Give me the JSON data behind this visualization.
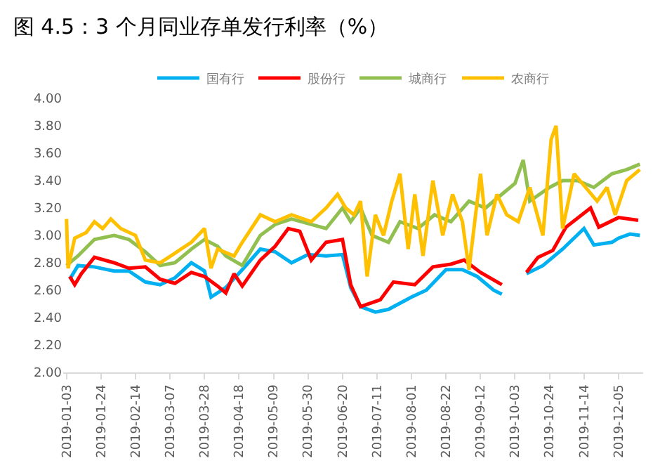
{
  "chart_data": {
    "type": "line",
    "title": "图 4.5：3 个月同业存单发行利率（%）",
    "xlim": [
      "2019-01-01",
      "2019-12-20"
    ],
    "xticks": [
      {
        "value": "2019-01-03",
        "label": "2019-01-03"
      },
      {
        "value": "2019-01-24",
        "label": "2019-01-24"
      },
      {
        "value": "2019-02-14",
        "label": "2019-02-14"
      },
      {
        "value": "2019-03-07",
        "label": "2019-03-07"
      },
      {
        "value": "2019-03-28",
        "label": "2019-03-28"
      },
      {
        "value": "2019-04-18",
        "label": "2019-04-18"
      },
      {
        "value": "2019-05-09",
        "label": "2019-05-09"
      },
      {
        "value": "2019-05-30",
        "label": "2019-05-30"
      },
      {
        "value": "2019-06-20",
        "label": "2019-06-20"
      },
      {
        "value": "2019-07-11",
        "label": "2019-07-11"
      },
      {
        "value": "2019-08-01",
        "label": "2019-08-01"
      },
      {
        "value": "2019-08-22",
        "label": "2019-08-22"
      },
      {
        "value": "2019-09-12",
        "label": "2019-09-12"
      },
      {
        "value": "2019-10-03",
        "label": "2019-10-03"
      },
      {
        "value": "2019-10-24",
        "label": "2019-10-24"
      },
      {
        "value": "2019-11-14",
        "label": "2019-11-14"
      },
      {
        "value": "2019-12-05",
        "label": "2019-12-05"
      }
    ],
    "ylim": [
      2.0,
      4.0
    ],
    "yticks": [
      {
        "value": 2.0,
        "label": "2.00"
      },
      {
        "value": 2.2,
        "label": "2.20"
      },
      {
        "value": 2.4,
        "label": "2.40"
      },
      {
        "value": 2.6,
        "label": "2.60"
      },
      {
        "value": 2.8,
        "label": "2.80"
      },
      {
        "value": 3.0,
        "label": "3.00"
      },
      {
        "value": 3.2,
        "label": "3.20"
      },
      {
        "value": 3.4,
        "label": "3.40"
      },
      {
        "value": 3.6,
        "label": "3.60"
      },
      {
        "value": 3.8,
        "label": "3.80"
      },
      {
        "value": 4.0,
        "label": "4.00"
      }
    ],
    "grid": false,
    "legend": "top",
    "marker": "none",
    "line_style": "solid",
    "series": [
      {
        "name": "国有行",
        "color": "#00b0f0",
        "x": [
          "2019-01-05",
          "2019-01-10",
          "2019-01-20",
          "2019-02-01",
          "2019-02-10",
          "2019-02-20",
          "2019-03-01",
          "2019-03-10",
          "2019-03-20",
          "2019-03-28",
          "2019-04-01",
          "2019-04-10",
          "2019-04-20",
          "2019-05-01",
          "2019-05-10",
          "2019-05-20",
          "2019-05-30",
          "2019-06-10",
          "2019-06-20",
          "2019-06-25",
          "2019-07-01",
          "2019-07-10",
          "2019-07-18",
          "2019-08-01",
          "2019-08-10",
          "2019-08-22",
          "2019-09-01",
          "2019-09-10",
          "2019-09-20",
          "2019-09-25",
          "2019-10-01",
          "2019-10-10",
          "2019-10-20",
          "2019-11-01",
          "2019-11-14",
          "2019-11-20",
          "2019-12-01",
          "2019-12-05",
          "2019-12-12",
          "2019-12-18"
        ],
        "values": [
          2.68,
          2.78,
          2.77,
          2.74,
          2.74,
          2.66,
          2.64,
          2.69,
          2.8,
          2.74,
          2.55,
          2.62,
          2.75,
          2.9,
          2.88,
          2.8,
          2.86,
          2.85,
          2.86,
          2.62,
          2.48,
          2.44,
          2.46,
          2.55,
          2.6,
          2.75,
          2.75,
          2.7,
          2.6,
          2.57,
          null,
          2.72,
          2.78,
          2.9,
          3.05,
          2.93,
          2.95,
          2.98,
          3.01,
          3.0
        ]
      },
      {
        "name": "股份行",
        "color": "#ff0000",
        "x": [
          "2019-01-05",
          "2019-01-08",
          "2019-01-12",
          "2019-01-20",
          "2019-02-01",
          "2019-02-10",
          "2019-02-20",
          "2019-03-01",
          "2019-03-10",
          "2019-03-20",
          "2019-03-28",
          "2019-04-05",
          "2019-04-10",
          "2019-04-15",
          "2019-04-20",
          "2019-05-01",
          "2019-05-10",
          "2019-05-18",
          "2019-05-25",
          "2019-06-01",
          "2019-06-10",
          "2019-06-20",
          "2019-06-25",
          "2019-07-01",
          "2019-07-13",
          "2019-07-21",
          "2019-08-03",
          "2019-08-14",
          "2019-08-25",
          "2019-09-02",
          "2019-09-12",
          "2019-09-25",
          "2019-10-01",
          "2019-10-10",
          "2019-10-17",
          "2019-10-26",
          "2019-11-03",
          "2019-11-18",
          "2019-11-23",
          "2019-12-05",
          "2019-12-17"
        ],
        "values": [
          2.7,
          2.64,
          2.72,
          2.84,
          2.8,
          2.76,
          2.77,
          2.68,
          2.65,
          2.73,
          2.7,
          2.63,
          2.58,
          2.72,
          2.63,
          2.82,
          2.92,
          3.05,
          3.03,
          2.82,
          2.95,
          2.97,
          2.64,
          2.48,
          2.53,
          2.66,
          2.64,
          2.77,
          2.79,
          2.82,
          2.73,
          2.64,
          null,
          2.73,
          2.84,
          2.89,
          3.06,
          3.2,
          3.06,
          3.13,
          3.11
        ]
      },
      {
        "name": "城商行",
        "color": "#92c050",
        "x": [
          "2019-01-03",
          "2019-01-10",
          "2019-01-20",
          "2019-02-01",
          "2019-02-10",
          "2019-02-20",
          "2019-03-01",
          "2019-03-10",
          "2019-03-20",
          "2019-03-28",
          "2019-04-05",
          "2019-04-10",
          "2019-04-20",
          "2019-05-01",
          "2019-05-10",
          "2019-05-20",
          "2019-06-01",
          "2019-06-10",
          "2019-06-20",
          "2019-06-25",
          "2019-07-01",
          "2019-07-08",
          "2019-07-18",
          "2019-07-25",
          "2019-08-05",
          "2019-08-15",
          "2019-08-25",
          "2019-09-05",
          "2019-09-15",
          "2019-09-25",
          "2019-10-03",
          "2019-10-08",
          "2019-10-12",
          "2019-10-24",
          "2019-11-01",
          "2019-11-10",
          "2019-11-20",
          "2019-12-01",
          "2019-12-10",
          "2019-12-18"
        ],
        "values": [
          2.78,
          2.85,
          2.97,
          3.0,
          2.97,
          2.88,
          2.78,
          2.8,
          2.9,
          2.97,
          2.92,
          2.85,
          2.78,
          3.0,
          3.08,
          3.12,
          3.08,
          3.05,
          3.2,
          3.1,
          3.2,
          3.0,
          2.95,
          3.1,
          3.05,
          3.15,
          3.1,
          3.25,
          3.2,
          3.3,
          3.38,
          3.55,
          3.25,
          3.35,
          3.4,
          3.4,
          3.35,
          3.45,
          3.48,
          3.52
        ]
      },
      {
        "name": "农商行",
        "color": "#ffc000",
        "x": [
          "2019-01-03",
          "2019-01-04",
          "2019-01-08",
          "2019-01-15",
          "2019-01-20",
          "2019-01-25",
          "2019-01-30",
          "2019-02-05",
          "2019-02-14",
          "2019-02-20",
          "2019-03-01",
          "2019-03-10",
          "2019-03-20",
          "2019-03-28",
          "2019-04-01",
          "2019-04-05",
          "2019-04-15",
          "2019-04-20",
          "2019-05-01",
          "2019-05-10",
          "2019-05-20",
          "2019-06-01",
          "2019-06-10",
          "2019-06-17",
          "2019-06-22",
          "2019-06-27",
          "2019-07-01",
          "2019-07-05",
          "2019-07-10",
          "2019-07-15",
          "2019-07-20",
          "2019-07-25",
          "2019-07-30",
          "2019-08-03",
          "2019-08-08",
          "2019-08-14",
          "2019-08-20",
          "2019-08-26",
          "2019-09-01",
          "2019-09-05",
          "2019-09-12",
          "2019-09-16",
          "2019-09-22",
          "2019-09-28",
          "2019-10-05",
          "2019-10-12",
          "2019-10-20",
          "2019-10-25",
          "2019-10-28",
          "2019-11-01",
          "2019-11-08",
          "2019-11-15",
          "2019-11-22",
          "2019-11-28",
          "2019-12-03",
          "2019-12-10",
          "2019-12-18"
        ],
        "values": [
          3.12,
          2.76,
          2.98,
          3.02,
          3.1,
          3.05,
          3.12,
          3.05,
          3.0,
          2.82,
          2.8,
          2.87,
          2.95,
          3.05,
          2.76,
          2.9,
          2.85,
          2.95,
          3.15,
          3.1,
          3.15,
          3.1,
          3.2,
          3.3,
          3.2,
          3.15,
          3.25,
          2.7,
          3.15,
          3.0,
          3.25,
          3.45,
          2.9,
          3.3,
          2.85,
          3.4,
          3.0,
          3.3,
          3.1,
          2.75,
          3.45,
          3.0,
          3.3,
          3.15,
          3.1,
          3.35,
          3.0,
          3.7,
          3.8,
          3.05,
          3.45,
          3.35,
          3.25,
          3.35,
          3.15,
          3.4,
          3.48
        ]
      }
    ]
  }
}
